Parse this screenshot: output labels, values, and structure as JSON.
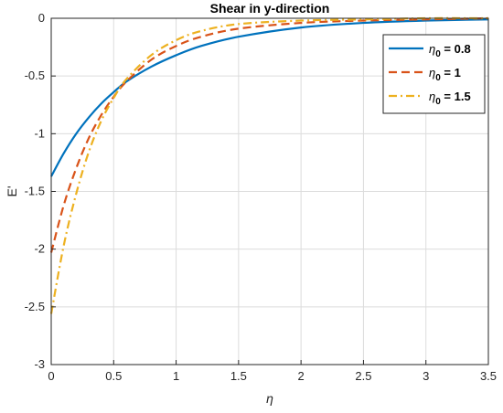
{
  "chart_data": {
    "type": "line",
    "title": "Shear in y-direction",
    "xlabel": "η",
    "ylabel": "E'",
    "xlim": [
      0,
      3.5
    ],
    "ylim": [
      -3,
      0
    ],
    "xticks": [
      "0",
      "0.5",
      "1",
      "1.5",
      "2",
      "2.5",
      "3",
      "3.5"
    ],
    "yticks": [
      "0",
      "-0.5",
      "-1",
      "-1.5",
      "-2",
      "-2.5",
      "-3"
    ],
    "grid": true,
    "legend_position": "top-right",
    "x": [
      0,
      0.1,
      0.2,
      0.3,
      0.4,
      0.5,
      0.6,
      0.8,
      1.0,
      1.2,
      1.5,
      2.0,
      2.5,
      3.0,
      3.5
    ],
    "series": [
      {
        "name": "η0 = 0.8",
        "legend_base": "η",
        "legend_sub": "0",
        "legend_rest": " = 0.8",
        "color": "#0072BD",
        "dash": "solid",
        "values": [
          -1.37,
          -1.17,
          -1.0,
          -0.86,
          -0.74,
          -0.64,
          -0.55,
          -0.42,
          -0.32,
          -0.24,
          -0.16,
          -0.08,
          -0.04,
          -0.02,
          -0.01
        ]
      },
      {
        "name": "η0 = 1",
        "legend_base": "η",
        "legend_sub": "0",
        "legend_rest": " = 1",
        "color": "#D95319",
        "dash": "dashed",
        "values": [
          -2.03,
          -1.62,
          -1.3,
          -1.04,
          -0.84,
          -0.68,
          -0.55,
          -0.36,
          -0.24,
          -0.16,
          -0.09,
          -0.04,
          -0.02,
          -0.01,
          0.0
        ]
      },
      {
        "name": "η0 = 1.5",
        "legend_base": "η",
        "legend_sub": "0",
        "legend_rest": " = 1.5",
        "color": "#EDB120",
        "dash": "dashdot",
        "values": [
          -2.56,
          -1.97,
          -1.52,
          -1.16,
          -0.89,
          -0.69,
          -0.53,
          -0.32,
          -0.19,
          -0.11,
          -0.05,
          -0.02,
          -0.01,
          0.0,
          0.0
        ]
      }
    ]
  }
}
